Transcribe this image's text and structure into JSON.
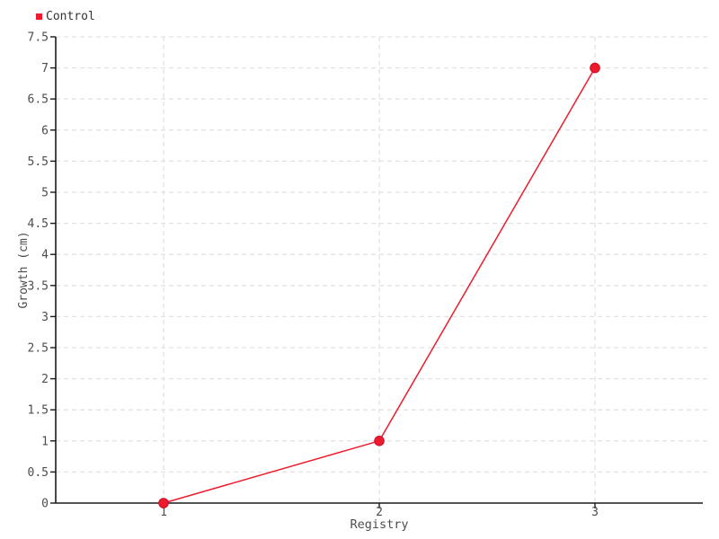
{
  "chart_data": {
    "type": "line",
    "title": "",
    "xlabel": "Registry",
    "ylabel": "Growth (cm)",
    "x": [
      1,
      2,
      3
    ],
    "xticks": [
      "1",
      "2",
      "3"
    ],
    "xlim": [
      0.5,
      3.5
    ],
    "ylim": [
      0,
      7.5
    ],
    "ytick_step": 0.5,
    "yticks": [
      "0",
      "0.5",
      "1",
      "1.5",
      "2",
      "2.5",
      "3",
      "3.5",
      "4",
      "4.5",
      "5",
      "5.5",
      "6",
      "6.5",
      "7",
      "7.5"
    ],
    "series": [
      {
        "name": "Control",
        "values": [
          0,
          1,
          7
        ],
        "color": "#ee1b2d",
        "marker": "circle"
      }
    ],
    "grid": "dashed",
    "legend_position": "top-left",
    "colors": {
      "series_red": "#ee1b2d",
      "marker_stroke": "#c8102a",
      "axis": "#1a1a1a",
      "grid": "#e2e2e2",
      "tick_label": "#4d4d4d",
      "axis_title": "#4d4d4d",
      "background": "#ffffff"
    }
  },
  "legend": {
    "items": [
      {
        "label": "Control",
        "color": "#ee1b2d"
      }
    ]
  }
}
